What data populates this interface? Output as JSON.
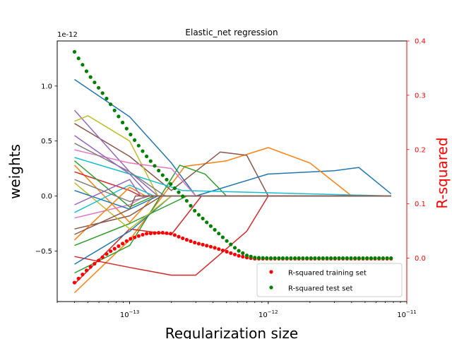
{
  "chart_data": {
    "type": "line",
    "title": "Elastic_net regression",
    "xlabel": "Regularization size",
    "ylabel": "weights",
    "ylabel_right": "R-squared",
    "x_scale": "log",
    "xlim": [
      3e-14,
      1e-11
    ],
    "ylim": [
      -0.96,
      1.41
    ],
    "ylim_right": [
      -0.08,
      0.4
    ],
    "y_offset_text": "1e-12",
    "x_tick_values": [
      1e-13,
      1e-12,
      1e-11
    ],
    "x_ticks": [
      "10−13",
      "10−12",
      "10−11"
    ],
    "x_tick_labels": [
      {
        "base": "10",
        "exp": "−13"
      },
      {
        "base": "10",
        "exp": "−12"
      },
      {
        "base": "10",
        "exp": "−11"
      }
    ],
    "y_ticks": [
      -0.5,
      0.0,
      0.5,
      1.0
    ],
    "y_tick_labels": [
      "−0.5",
      "0.0",
      "0.5",
      "1.0"
    ],
    "y_ticks_right": [
      0.0,
      0.1,
      0.2,
      0.3,
      0.4
    ],
    "y_tick_labels_right": [
      "0.0",
      "0.1",
      "0.2",
      "0.3",
      "0.4"
    ],
    "right_axis_color": "#ff0000",
    "grid": false,
    "legend_position": "lower-right",
    "legend": [
      {
        "label": "R-squared training set",
        "color": "#ff0000",
        "marker": "dot"
      },
      {
        "label": "R-squared test set",
        "color": "#008000",
        "marker": "dot"
      }
    ],
    "weight_paths": [
      {
        "color": "#1f77b4",
        "x": [
          4e-14,
          1e-13,
          2e-13,
          3e-13,
          1e-12,
          3e-12,
          4.5e-12,
          7.7e-12
        ],
        "values": [
          1.06,
          0.72,
          0.3,
          0.0,
          0.2,
          0.23,
          0.26,
          0.02
        ]
      },
      {
        "color": "#ff7f0e",
        "x": [
          4e-14,
          1e-13,
          2.5e-13,
          5e-13,
          1e-12,
          2e-12,
          4e-12,
          7.7e-12
        ],
        "values": [
          -0.88,
          -0.4,
          0.27,
          0.32,
          0.44,
          0.3,
          0.0,
          0.0
        ]
      },
      {
        "color": "#8c564b",
        "x": [
          4e-14,
          1e-13,
          2e-13,
          4.5e-13,
          7e-13,
          1e-12,
          7.7e-12
        ],
        "values": [
          0.66,
          0.36,
          0.05,
          0.4,
          0.37,
          0.0,
          0.0
        ]
      },
      {
        "color": "#2ca02c",
        "x": [
          4e-14,
          1e-13,
          2.3e-13,
          3.5e-13,
          5e-13,
          7.7e-12
        ],
        "values": [
          -0.7,
          -0.45,
          0.28,
          0.2,
          0.0,
          0.0
        ]
      },
      {
        "color": "#d62728",
        "x": [
          4e-14,
          1e-13,
          2e-13,
          3e-13,
          7e-13,
          1e-12,
          7.7e-12
        ],
        "values": [
          -0.55,
          -0.65,
          -0.72,
          -0.72,
          -0.32,
          0.0,
          0.0
        ]
      },
      {
        "color": "#d62728",
        "x": [
          4e-14,
          1e-13,
          2e-13,
          3.3e-13,
          7.7e-12
        ],
        "values": [
          -0.8,
          -0.3,
          -0.35,
          0.0,
          0.0
        ]
      },
      {
        "color": "#9467bd",
        "x": [
          4e-14,
          1e-13,
          1.6e-13,
          7.7e-12
        ],
        "values": [
          0.78,
          0.22,
          0.0,
          0.0
        ]
      },
      {
        "color": "#bcbd22",
        "x": [
          4e-14,
          5e-14,
          1e-13,
          1.6e-13,
          7.7e-12
        ],
        "values": [
          0.68,
          0.73,
          0.5,
          0.0,
          0.0
        ]
      },
      {
        "color": "#e377c2",
        "x": [
          4e-14,
          1e-13,
          2e-13,
          3e-13,
          7.7e-12
        ],
        "values": [
          0.42,
          0.3,
          0.25,
          0.0,
          0.0
        ]
      },
      {
        "color": "#17becf",
        "x": [
          4e-14,
          1e-13,
          2.4e-13,
          7.7e-12
        ],
        "values": [
          0.35,
          0.2,
          0.05,
          0.0
        ]
      },
      {
        "color": "#1f77b4",
        "x": [
          4e-14,
          1e-13,
          2e-13,
          7.7e-12
        ],
        "values": [
          -0.62,
          -0.32,
          0.0,
          0.0
        ]
      },
      {
        "color": "#7f7f7f",
        "x": [
          4e-14,
          1e-13,
          1.8e-13,
          7.7e-12
        ],
        "values": [
          0.48,
          0.22,
          0.0,
          0.0
        ]
      },
      {
        "color": "#ff7f0e",
        "x": [
          4e-14,
          1e-13,
          1.5e-13,
          7.7e-12
        ],
        "values": [
          0.28,
          -0.24,
          0.0,
          0.0
        ]
      },
      {
        "color": "#2ca02c",
        "x": [
          4e-14,
          1e-13,
          2.6e-13,
          7.7e-12
        ],
        "values": [
          -0.45,
          -0.25,
          0.0,
          0.0
        ]
      },
      {
        "color": "#9467bd",
        "x": [
          4e-14,
          1e-13,
          1.4e-13,
          7.7e-12
        ],
        "values": [
          0.55,
          0.2,
          0.0,
          0.0
        ]
      },
      {
        "color": "#8c564b",
        "x": [
          4e-14,
          1e-13,
          1.7e-13,
          7.7e-12
        ],
        "values": [
          -0.3,
          -0.18,
          0.0,
          0.0
        ]
      },
      {
        "color": "#e377c2",
        "x": [
          4e-14,
          1e-13,
          1.3e-13,
          7.7e-12
        ],
        "values": [
          -0.2,
          -0.08,
          0.0,
          0.0
        ]
      },
      {
        "color": "#bcbd22",
        "x": [
          4e-14,
          1e-13,
          2e-13,
          7.7e-12
        ],
        "values": [
          0.12,
          -0.3,
          0.0,
          0.0
        ]
      },
      {
        "color": "#17becf",
        "x": [
          4e-14,
          1e-13,
          1.5e-13,
          7.7e-12
        ],
        "values": [
          -0.15,
          0.1,
          0.0,
          0.0
        ]
      },
      {
        "color": "#d62728",
        "x": [
          4e-14,
          1e-13,
          1.2e-13,
          7.7e-12
        ],
        "values": [
          0.22,
          0.05,
          0.0,
          0.0
        ]
      },
      {
        "color": "#1f77b4",
        "x": [
          4e-14,
          1e-13,
          1.6e-13,
          7.7e-12
        ],
        "values": [
          0.05,
          -0.12,
          0.0,
          0.0
        ]
      },
      {
        "color": "#ff7f0e",
        "x": [
          4e-14,
          1e-13,
          1.3e-13,
          7.7e-12
        ],
        "values": [
          -0.4,
          0.08,
          0.0,
          0.0
        ]
      },
      {
        "color": "#2ca02c",
        "x": [
          4e-14,
          1e-13,
          1.5e-13,
          7.7e-12
        ],
        "values": [
          0.32,
          -0.1,
          0.0,
          0.0
        ]
      },
      {
        "color": "#9467bd",
        "x": [
          4e-14,
          1e-13,
          1.2e-13,
          7.7e-12
        ],
        "values": [
          -0.08,
          0.15,
          0.0,
          0.0
        ]
      },
      {
        "color": "#7f7f7f",
        "x": [
          4e-14,
          1e-13,
          1.4e-13,
          7.7e-12
        ],
        "values": [
          0.15,
          -0.05,
          0.0,
          0.0
        ]
      },
      {
        "color": "#8c564b",
        "x": [
          4e-14,
          1e-13,
          1.1e-13,
          7.7e-12
        ],
        "values": [
          -0.35,
          -0.12,
          0.0,
          0.0
        ]
      }
    ],
    "series": [
      {
        "name": "R-squared training set",
        "color": "#ff0000",
        "axis": "right",
        "x": [
          4e-14,
          5e-14,
          7e-14,
          1e-13,
          1.3e-13,
          1.7e-13,
          2e-13,
          2.5e-13,
          3e-13,
          4e-13,
          5e-13,
          6e-13,
          7e-13,
          8e-13,
          1e-12,
          2e-12,
          4e-12,
          7.7e-12
        ],
        "values": [
          -0.045,
          -0.02,
          0.01,
          0.035,
          0.045,
          0.047,
          0.045,
          0.035,
          0.028,
          0.02,
          0.012,
          0.005,
          0.001,
          -0.001,
          -0.001,
          -0.001,
          -0.001,
          -0.001
        ]
      },
      {
        "name": "R-squared test set",
        "color": "#008000",
        "axis": "right",
        "x": [
          4e-14,
          5e-14,
          7e-14,
          1e-13,
          1.3e-13,
          1.7e-13,
          2e-13,
          2.5e-13,
          3e-13,
          4e-13,
          5e-13,
          6e-13,
          7e-13,
          8e-13,
          1e-12,
          2e-12,
          4e-12,
          7.7e-12
        ],
        "values": [
          0.38,
          0.34,
          0.29,
          0.23,
          0.19,
          0.155,
          0.135,
          0.11,
          0.085,
          0.055,
          0.032,
          0.015,
          0.005,
          0.001,
          0.0,
          0.0,
          0.0,
          0.0
        ]
      }
    ]
  }
}
